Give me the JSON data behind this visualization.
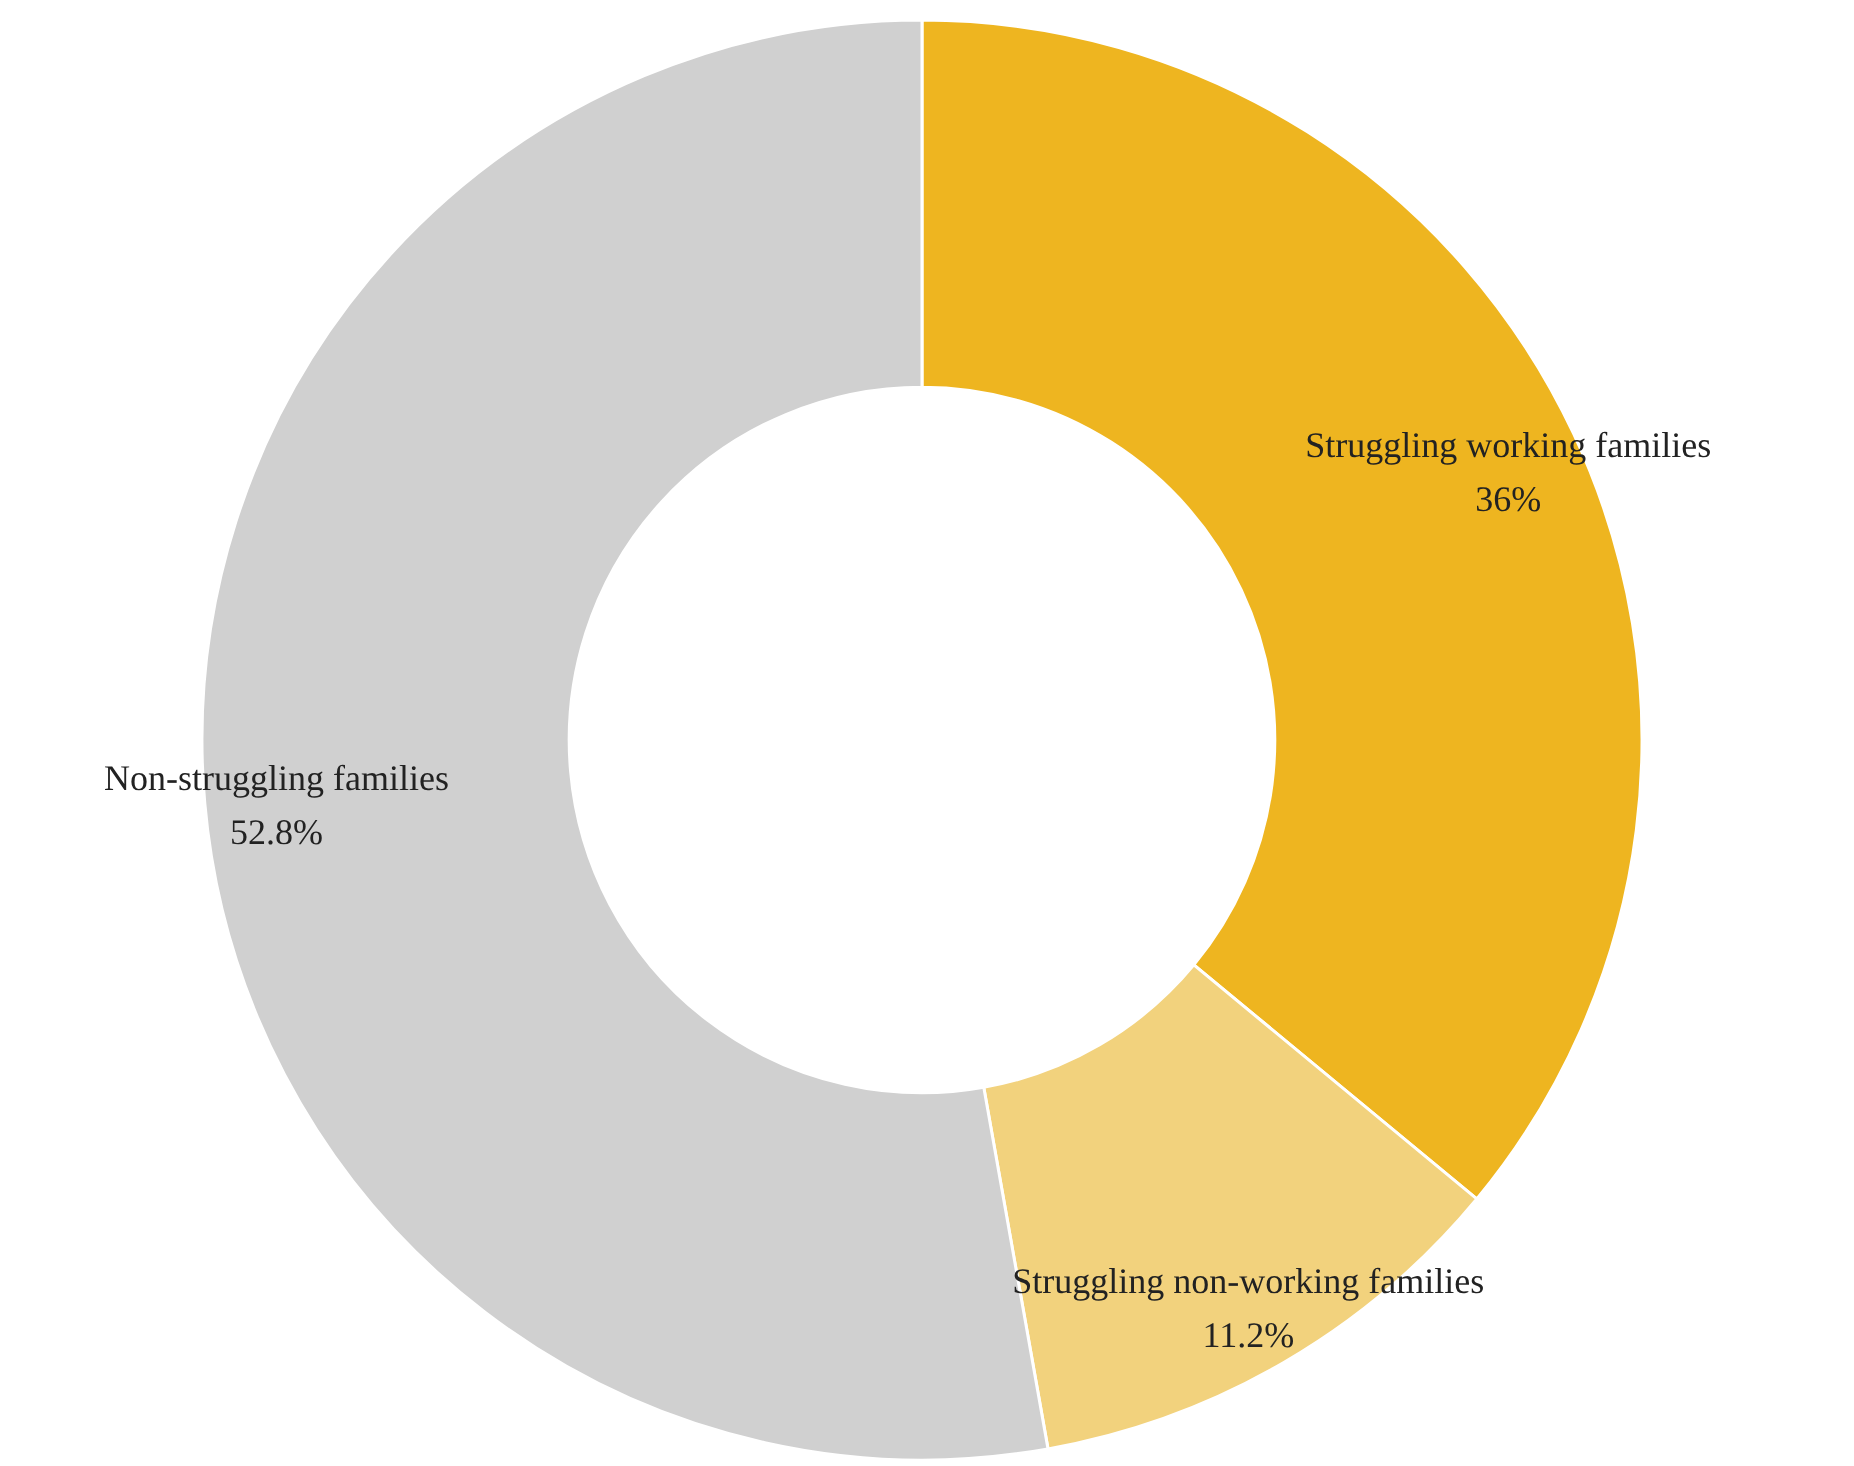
{
  "chart_data": {
    "type": "donut",
    "categories": [
      "Struggling working families",
      "Struggling non-working families",
      "Non-struggling families"
    ],
    "values": [
      36,
      11.2,
      52.8
    ],
    "colors": [
      "#eeb520",
      "#f2d27d",
      "#d0d0d0"
    ],
    "value_labels": [
      "36%",
      "11.2%",
      "52.8%"
    ],
    "legend": false
  }
}
